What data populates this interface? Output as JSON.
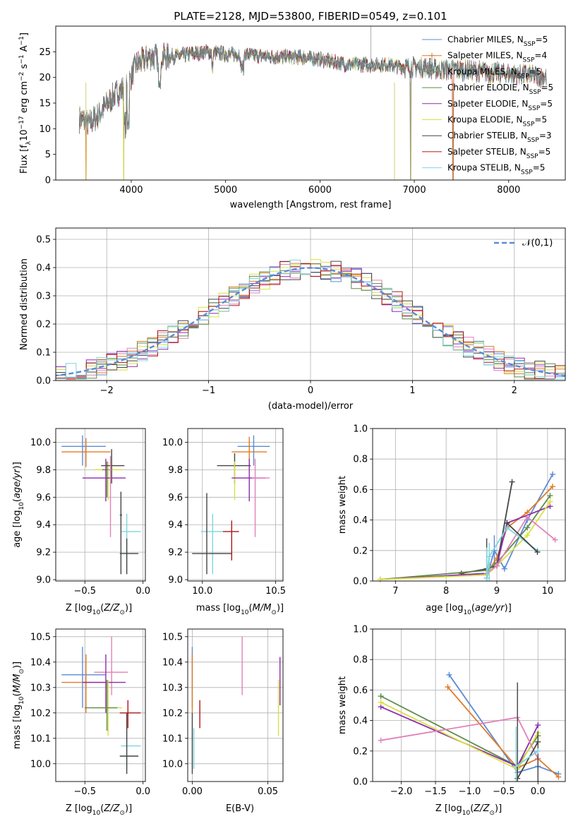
{
  "figure": {
    "title": "PLATE=2128, MJD=53800, FIBERID=0549, z=0.101"
  },
  "colors": {
    "Chabrier MILES": "#5b8bd6",
    "Salpeter MILES": "#e07b26",
    "Kroupa MILES": "#6a9a5a",
    "Chabrier ELODIE": "#5f8c4a",
    "Salpeter ELODIE": "#8e2bb0",
    "Kroupa ELODIE": "#d9e040",
    "Chabrier STELIB": "#444444",
    "Salpeter STELIB": "#b01515",
    "Kroupa STELIB": "#7fd4dd",
    "gauss": "#5b8bd6",
    "pink": "#e082b8"
  },
  "chart_data": [
    {
      "id": "spectrum",
      "type": "line",
      "title": "PLATE=2128, MJD=53800, FIBERID=0549, z=0.101",
      "xlabel": "wavelength [Angstrom, rest frame]",
      "ylabel": "Flux [f_λ 10^-17 erg cm^-2 s^-1 A^-1]",
      "xlim": [
        3200,
        8600
      ],
      "ylim": [
        0,
        30
      ],
      "xticks": [
        4000,
        5000,
        6000,
        7000,
        8000
      ],
      "yticks": [
        0,
        5,
        10,
        15,
        20,
        25
      ],
      "legend_position": "top-right",
      "legend": [
        "Chabrier MILES, N_SSP=5",
        "Salpeter MILES, N_SSP=4",
        "Kroupa MILES, N_SSP=5",
        "Chabrier ELODIE, N_SSP=5",
        "Salpeter ELODIE, N_SSP=5",
        "Kroupa ELODIE, N_SSP=5",
        "Chabrier STELIB, N_SSP=3",
        "Salpeter STELIB, N_SSP=5",
        "Kroupa STELIB, N_SSP=5"
      ],
      "continuum": {
        "x": [
          3450,
          3550,
          3650,
          3750,
          3850,
          3950,
          4050,
          4200,
          4400,
          4600,
          4800,
          5000,
          5200,
          5500,
          5800,
          6000,
          6300,
          6500,
          6700,
          6900,
          7100,
          7300,
          7500,
          7800,
          8200,
          8400
        ],
        "y": [
          12,
          11,
          12.5,
          15,
          17,
          18,
          22.5,
          24,
          24,
          24.5,
          25,
          24.5,
          24.5,
          24,
          24,
          23.5,
          22.5,
          22.5,
          22.5,
          22,
          22,
          21.5,
          21.5,
          21,
          20.5,
          20
        ]
      },
      "dips": [
        {
          "x": 3520,
          "y": 0
        },
        {
          "x": 3920,
          "y": 0
        },
        {
          "x": 6790,
          "y": 0
        },
        {
          "x": 6960,
          "y": 0
        },
        {
          "x": 7410,
          "y": 0
        }
      ],
      "spike": {
        "x": 6540,
        "y": 30
      }
    },
    {
      "id": "residuals",
      "type": "histogram",
      "xlabel": "(data-model)/error",
      "ylabel": "Normed distribution",
      "xlim": [
        -2.5,
        2.5
      ],
      "ylim": [
        0,
        0.54
      ],
      "xticks": [
        -2,
        -1,
        0,
        1,
        2
      ],
      "yticks": [
        0.0,
        0.1,
        0.2,
        0.3,
        0.4,
        0.5
      ],
      "grid": true,
      "legend_position": "top-right",
      "legend": [
        "𝒩(0,1)"
      ],
      "bin_width": 0.1,
      "gauss_curve": {
        "mean": 0,
        "sigma": 1
      }
    },
    {
      "id": "age_vs_Z",
      "type": "errorbar",
      "xlabel": "Z [log10(Z/Z⊙)]",
      "ylabel": "age  [log10(age/yr)]",
      "xlim": [
        -0.75,
        0.02
      ],
      "ylim": [
        8.99,
        10.1
      ],
      "xticks": [
        -0.5,
        0.0
      ],
      "yticks": [
        9.0,
        9.2,
        9.4,
        9.6,
        9.8,
        10.0
      ],
      "grid": true,
      "points": [
        {
          "k": "Chabrier MILES",
          "x": -0.52,
          "xe": [
            -0.7,
            -0.32
          ],
          "y": 9.97,
          "ye": [
            9.83,
            10.05
          ]
        },
        {
          "k": "Salpeter MILES",
          "x": -0.49,
          "xe": [
            -0.7,
            -0.28
          ],
          "y": 9.93,
          "ye": [
            9.82,
            10.03
          ]
        },
        {
          "k": "Kroupa ELODIE",
          "x": -0.3,
          "xe": [
            -0.42,
            -0.18
          ],
          "y": 9.8,
          "ye": [
            9.58,
            9.86
          ]
        },
        {
          "k": "Chabrier ELODIE",
          "x": -0.31,
          "xe": [
            -0.35,
            -0.3
          ],
          "y": 9.8,
          "ye": [
            9.6,
            9.86
          ]
        },
        {
          "k": "Chabrier STELIB",
          "x": -0.27,
          "xe": [
            -0.36,
            -0.16
          ],
          "y": 9.83,
          "ye": [
            9.7,
            9.95
          ]
        },
        {
          "k": "Salpeter ELODIE",
          "x": -0.32,
          "xe": [
            -0.52,
            -0.15
          ],
          "y": 9.74,
          "ye": [
            9.57,
            9.88
          ]
        },
        {
          "k": "pink",
          "x": -0.28,
          "xe": [
            -0.3,
            -0.27
          ],
          "y": 9.8,
          "ye": [
            9.31,
            9.9
          ]
        },
        {
          "k": "Kroupa STELIB",
          "x": -0.14,
          "xe": [
            -0.19,
            -0.02
          ],
          "y": 9.35,
          "ye": [
            9.04,
            9.48
          ]
        },
        {
          "k": "Chabrier STELIB",
          "x": -0.19,
          "xe": [
            -0.2,
            -0.18
          ],
          "y": 9.47,
          "ye": [
            9.04,
            9.64
          ]
        },
        {
          "k": "Chabrier STELIB",
          "x": -0.14,
          "xe": [
            -0.2,
            -0.04
          ],
          "y": 9.19,
          "ye": [
            9.04,
            9.3
          ]
        }
      ]
    },
    {
      "id": "age_vs_mass",
      "type": "errorbar",
      "xlabel": "mass [log10(M/M⊙)]",
      "ylabel": "",
      "xlim": [
        9.9,
        10.55
      ],
      "ylim": [
        8.99,
        10.1
      ],
      "xticks": [
        10.0,
        10.5
      ],
      "yticks": [
        9.0,
        9.2,
        9.4,
        9.6,
        9.8,
        10.0
      ],
      "grid": true,
      "points": [
        {
          "k": "Chabrier MILES",
          "x": 10.35,
          "xe": [
            10.24,
            10.46
          ],
          "y": 9.97,
          "ye": [
            9.83,
            10.05
          ]
        },
        {
          "k": "Salpeter MILES",
          "x": 10.32,
          "xe": [
            10.2,
            10.44
          ],
          "y": 9.93,
          "ye": [
            9.8,
            10.04
          ]
        },
        {
          "k": "Chabrier STELIB",
          "x": 10.22,
          "xe": [
            10.1,
            10.33
          ],
          "y": 9.83,
          "ye": [
            9.7,
            9.92
          ]
        },
        {
          "k": "Kroupa ELODIE",
          "x": 10.22,
          "xe": [
            10.21,
            10.23
          ],
          "y": 9.8,
          "ye": [
            9.58,
            9.86
          ]
        },
        {
          "k": "Salpeter ELODIE",
          "x": 10.32,
          "xe": [
            10.2,
            10.43
          ],
          "y": 9.74,
          "ye": [
            9.57,
            9.88
          ]
        },
        {
          "k": "pink",
          "x": 10.36,
          "xe": [
            10.34,
            10.46
          ],
          "y": 9.74,
          "ye": [
            9.31,
            9.88
          ]
        },
        {
          "k": "Kroupa STELIB",
          "x": 10.07,
          "xe": [
            9.99,
            10.14
          ],
          "y": 9.35,
          "ye": [
            9.04,
            9.48
          ]
        },
        {
          "k": "Salpeter STELIB",
          "x": 10.2,
          "xe": [
            10.14,
            10.25
          ],
          "y": 9.35,
          "ye": [
            9.14,
            9.43
          ]
        },
        {
          "k": "Chabrier STELIB",
          "x": 10.03,
          "xe": [
            9.93,
            10.2
          ],
          "y": 9.19,
          "ye": [
            9.04,
            9.63
          ]
        }
      ]
    },
    {
      "id": "weight_vs_age",
      "type": "line",
      "xlabel": "age  [log10(age/yr)]",
      "ylabel": "mass weight",
      "xlim": [
        6.55,
        10.35
      ],
      "ylim": [
        0.0,
        1.0
      ],
      "xticks": [
        7,
        8,
        9,
        10
      ],
      "yticks": [
        0.0,
        0.2,
        0.4,
        0.6,
        0.8,
        1.0
      ],
      "grid": true,
      "series": [
        {
          "k": "Chabrier MILES",
          "x": [
            8.8,
            8.95,
            9.15,
            9.6,
            10.1
          ],
          "y": [
            0.02,
            0.2,
            0.08,
            0.4,
            0.7
          ],
          "ye": [
            null,
            [
              0.1,
              0.3
            ],
            null,
            null,
            null
          ]
        },
        {
          "k": "Salpeter MILES",
          "x": [
            8.8,
            9.0,
            9.2,
            9.6,
            10.1
          ],
          "y": [
            0.05,
            0.15,
            0.35,
            0.45,
            0.62
          ]
        },
        {
          "k": "Chabrier STELIB",
          "x": [
            8.3,
            8.8,
            9.0,
            9.3
          ],
          "y": [
            0.05,
            0.08,
            0.1,
            0.65
          ],
          "ye": [
            null,
            [
              0.0,
              0.28
            ],
            null,
            null
          ]
        },
        {
          "k": "Chabrier ELODIE",
          "x": [
            6.7,
            8.8,
            9.0,
            9.6,
            10.05
          ],
          "y": [
            0.01,
            0.07,
            0.12,
            0.35,
            0.56
          ]
        },
        {
          "k": "Salpeter ELODIE",
          "x": [
            6.7,
            8.8,
            9.0,
            9.2,
            10.05
          ],
          "y": [
            0.01,
            0.05,
            0.1,
            0.38,
            0.49
          ]
        },
        {
          "k": "Kroupa ELODIE",
          "x": [
            6.7,
            8.8,
            9.0,
            9.6,
            10.05
          ],
          "y": [
            0.01,
            0.04,
            0.1,
            0.3,
            0.52
          ]
        },
        {
          "k": "pink",
          "x": [
            8.8,
            9.0,
            9.6,
            10.15
          ],
          "y": [
            0.05,
            0.1,
            0.42,
            0.27
          ]
        },
        {
          "k": "Kroupa STELIB",
          "x": [
            8.8,
            8.85,
            9.2,
            9.8
          ],
          "y": [
            0.02,
            0.16,
            0.35,
            0.2
          ],
          "ye": [
            [
              0.0,
              0.22
            ],
            [
              0.0,
              0.25
            ],
            null,
            null
          ]
        },
        {
          "k": "Chabrier STELIB",
          "x": [
            9.2,
            9.8
          ],
          "y": [
            0.38,
            0.19
          ]
        }
      ]
    },
    {
      "id": "mass_vs_Z",
      "type": "errorbar",
      "xlabel": "Z [log10(Z/Z⊙)]",
      "ylabel": "mass [log10(M/M⊙)]",
      "xlim": [
        -0.75,
        0.02
      ],
      "ylim": [
        9.93,
        10.53
      ],
      "xticks": [
        -0.5,
        0.0
      ],
      "yticks": [
        10.0,
        10.1,
        10.2,
        10.3,
        10.4,
        10.5
      ],
      "grid": true,
      "points": [
        {
          "k": "Chabrier MILES",
          "x": -0.52,
          "xe": [
            -0.7,
            -0.32
          ],
          "y": 10.35,
          "ye": [
            10.22,
            10.46
          ]
        },
        {
          "k": "Salpeter MILES",
          "x": -0.49,
          "xe": [
            -0.7,
            -0.28
          ],
          "y": 10.32,
          "ye": [
            10.2,
            10.43
          ]
        },
        {
          "k": "pink",
          "x": -0.27,
          "xe": [
            -0.42,
            -0.13
          ],
          "y": 10.36,
          "ye": [
            10.27,
            10.5
          ]
        },
        {
          "k": "Salpeter ELODIE",
          "x": -0.32,
          "xe": [
            -0.52,
            -0.15
          ],
          "y": 10.32,
          "ye": [
            10.2,
            10.43
          ]
        },
        {
          "k": "Kroupa ELODIE",
          "x": -0.3,
          "xe": [
            -0.42,
            -0.18
          ],
          "y": 10.22,
          "ye": [
            10.11,
            10.33
          ]
        },
        {
          "k": "Chabrier ELODIE",
          "x": -0.31,
          "xe": [
            -0.5,
            -0.22
          ],
          "y": 10.22,
          "ye": [
            10.13,
            10.33
          ]
        },
        {
          "k": "Salpeter STELIB",
          "x": -0.13,
          "xe": [
            -0.2,
            -0.02
          ],
          "y": 10.2,
          "ye": [
            10.14,
            10.25
          ]
        },
        {
          "k": "Kroupa STELIB",
          "x": -0.14,
          "xe": [
            -0.19,
            -0.02
          ],
          "y": 10.07,
          "ye": [
            9.98,
            10.14
          ]
        },
        {
          "k": "Chabrier STELIB",
          "x": -0.14,
          "xe": [
            -0.2,
            -0.04
          ],
          "y": 10.03,
          "ye": [
            9.96,
            10.2
          ]
        }
      ]
    },
    {
      "id": "mass_vs_ebv",
      "type": "errorbar",
      "xlabel": "E(B-V)",
      "ylabel": "",
      "xlim": [
        -0.003,
        0.06
      ],
      "ylim": [
        9.93,
        10.53
      ],
      "xticks": [
        0.0,
        0.05
      ],
      "yticks": [
        10.0,
        10.1,
        10.2,
        10.3,
        10.4,
        10.5
      ],
      "grid": true,
      "points": [
        {
          "k": "Chabrier MILES",
          "x": 0.0,
          "y": 10.35,
          "ye": [
            10.22,
            10.46
          ]
        },
        {
          "k": "Salpeter MILES",
          "x": 0.0,
          "y": 10.32,
          "ye": [
            10.2,
            10.43
          ]
        },
        {
          "k": "Salpeter STELIB",
          "x": 0.005,
          "y": 10.2,
          "ye": [
            10.14,
            10.25
          ]
        },
        {
          "k": "Kroupa STELIB",
          "x": 0.001,
          "y": 10.07,
          "ye": [
            9.98,
            10.14
          ]
        },
        {
          "k": "Chabrier STELIB",
          "x": 0.0,
          "y": 10.03,
          "ye": [
            9.96,
            10.2
          ]
        },
        {
          "k": "pink",
          "x": 0.033,
          "y": 10.36,
          "ye": [
            10.27,
            10.5
          ]
        },
        {
          "k": "Salpeter ELODIE",
          "x": 0.058,
          "y": 10.32,
          "ye": [
            10.23,
            10.42
          ]
        },
        {
          "k": "Kroupa ELODIE",
          "x": 0.057,
          "y": 10.22,
          "ye": [
            10.11,
            10.33
          ]
        }
      ]
    },
    {
      "id": "weight_vs_Z",
      "type": "line",
      "xlabel": "Z [log10(Z/Z⊙)]",
      "ylabel": "mass weight",
      "xlim": [
        -2.42,
        0.4
      ],
      "ylim": [
        0.0,
        1.0
      ],
      "xticks": [
        -2.0,
        -1.5,
        -1.0,
        -0.5,
        0.0
      ],
      "yticks": [
        0.0,
        0.2,
        0.4,
        0.6,
        0.8,
        1.0
      ],
      "grid": true,
      "series": [
        {
          "k": "Chabrier MILES",
          "x": [
            -1.3,
            -0.3,
            0.0,
            0.3
          ],
          "y": [
            0.7,
            0.06,
            0.1,
            0.05
          ]
        },
        {
          "k": "Salpeter MILES",
          "x": [
            -1.32,
            -0.3,
            0.0,
            0.3
          ],
          "y": [
            0.62,
            0.09,
            0.15,
            0.03
          ]
        },
        {
          "k": "Chabrier ELODIE",
          "x": [
            -2.3,
            -0.3,
            0.0
          ],
          "y": [
            0.56,
            0.1,
            0.3
          ]
        },
        {
          "k": "Salpeter ELODIE",
          "x": [
            -2.3,
            -0.3,
            0.0
          ],
          "y": [
            0.49,
            0.1,
            0.37
          ]
        },
        {
          "k": "Kroupa ELODIE",
          "x": [
            -2.3,
            -0.3,
            0.0
          ],
          "y": [
            0.52,
            0.08,
            0.32
          ]
        },
        {
          "k": "pink",
          "x": [
            -2.3,
            -0.3,
            0.0
          ],
          "y": [
            0.27,
            0.42,
            0.15
          ]
        },
        {
          "k": "Chabrier STELIB",
          "x": [
            -0.3,
            0.0
          ],
          "y": [
            0.02,
            0.26
          ],
          "ye": [
            [
              0.0,
              0.65
            ],
            [
              0.0,
              0.33
            ]
          ]
        },
        {
          "k": "Kroupa STELIB",
          "x": [
            -0.32,
            0.0
          ],
          "y": [
            0.1,
            0.2
          ],
          "ye": [
            [
              0.0,
              0.36
            ],
            null
          ]
        }
      ]
    }
  ]
}
